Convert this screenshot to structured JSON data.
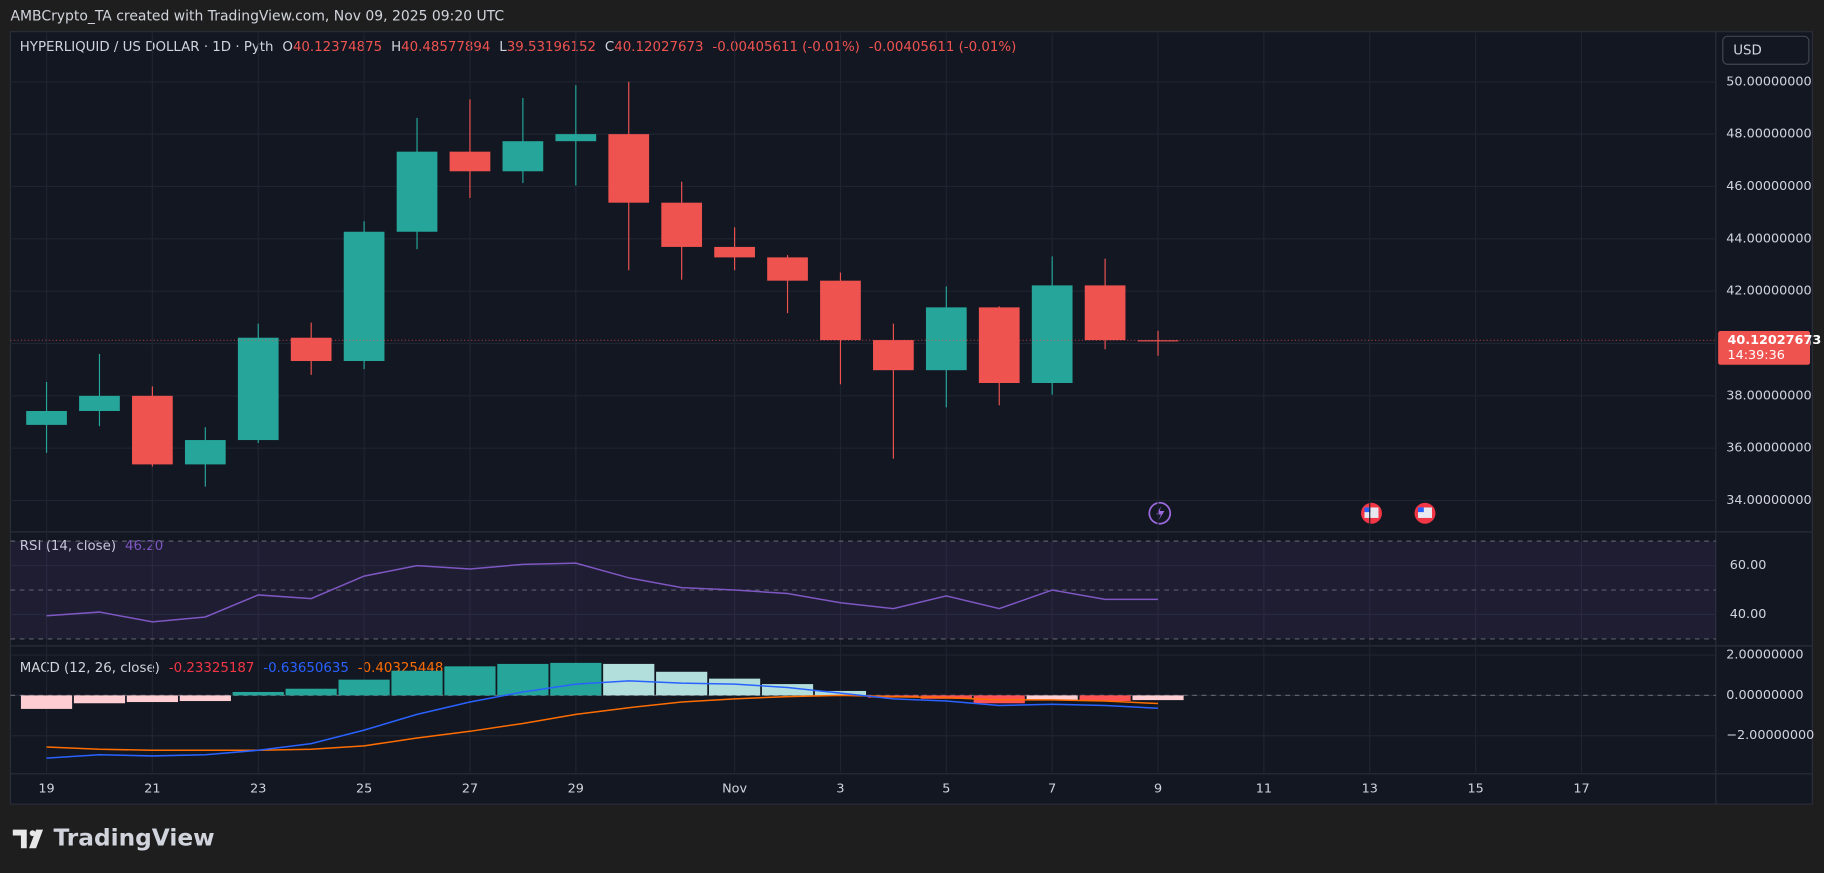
{
  "header": {
    "attribution": "AMBCrypto_TA created with TradingView.com, Nov 09, 2025 09:20 UTC",
    "currency": "USD",
    "logo": "TradingView"
  },
  "chart_data": [
    {
      "type": "candlestick",
      "title": "HYPERLIQUID / US DOLLAR · 1D · Pyth",
      "ohlc_letters": [
        "O",
        "H",
        "L",
        "C"
      ],
      "change": "-0.00405611 (-0.01%)",
      "categories": [
        "19",
        null,
        "21",
        null,
        "23",
        null,
        "25",
        null,
        "27",
        null,
        "29",
        null,
        null,
        "Nov",
        null,
        "3",
        null,
        "5",
        null,
        "7",
        null,
        "9",
        null,
        "11",
        null,
        "13",
        null,
        "15",
        null,
        "17"
      ],
      "open": [
        36.89,
        37.42,
        38.0,
        35.38,
        36.31,
        40.22,
        39.33,
        44.27,
        47.33,
        46.58,
        47.73,
        48.0,
        45.38,
        43.69,
        43.29,
        42.4,
        40.13,
        38.98,
        41.38,
        38.49,
        42.22,
        40.12374875,
        null,
        null,
        null,
        null,
        null,
        null,
        null,
        null
      ],
      "high": [
        38.53,
        39.6,
        38.36,
        36.8,
        40.76,
        40.8,
        44.67,
        48.62,
        49.33,
        49.38,
        49.87,
        50.0,
        46.18,
        44.44,
        43.38,
        42.71,
        40.76,
        42.18,
        41.42,
        43.33,
        43.24,
        40.48577894,
        null,
        null,
        null,
        null,
        null,
        null,
        null,
        null
      ],
      "low": [
        35.82,
        36.84,
        35.3,
        34.53,
        36.2,
        38.8,
        39.02,
        43.6,
        45.56,
        46.13,
        46.04,
        42.8,
        42.44,
        42.8,
        41.16,
        38.44,
        35.6,
        37.56,
        37.64,
        38.04,
        39.78,
        39.53196152,
        null,
        null,
        null,
        null,
        null,
        null,
        null,
        null
      ],
      "close": [
        37.42,
        38.0,
        35.38,
        36.31,
        40.22,
        39.33,
        44.27,
        47.33,
        46.58,
        47.73,
        48.0,
        45.38,
        43.69,
        43.29,
        42.4,
        40.13,
        38.98,
        41.38,
        38.49,
        42.22,
        40.13,
        40.12027673,
        null,
        null,
        null,
        null,
        null,
        null,
        null,
        null
      ],
      "up_color": "#26a69a",
      "down_color": "#ef5350",
      "ylim": [
        32.89,
        51.87
      ],
      "yticks": [
        {
          "value": 34,
          "label": "34.00000000"
        },
        {
          "value": 36,
          "label": "36.00000000"
        },
        {
          "value": 38,
          "label": "38.00000000"
        },
        {
          "value": 40,
          "label": "40.00000000"
        },
        {
          "value": 42,
          "label": "42.00000000"
        },
        {
          "value": 44,
          "label": "44.00000000"
        },
        {
          "value": 46,
          "label": "46.00000000"
        },
        {
          "value": 48,
          "label": "48.00000000"
        },
        {
          "value": 50,
          "label": "50.00000000"
        }
      ],
      "last_price_time": "14:39:36",
      "grid": true
    },
    {
      "type": "line",
      "title": "RSI (14, close)",
      "values": [
        39.5,
        41,
        37,
        39,
        48,
        46.5,
        55.7,
        60,
        58.6,
        60.5,
        61,
        55,
        51,
        50,
        48.6,
        44.8,
        42.4,
        47.6,
        42.4,
        50,
        46.2,
        46.2,
        null,
        null,
        null,
        null,
        null,
        null,
        null,
        null
      ],
      "value_label": "46.20",
      "color": "#7e57c2",
      "ylim": [
        28.6,
        71.4
      ],
      "yticks": [
        {
          "value": 40,
          "label": "40.00"
        },
        {
          "value": 60,
          "label": "60.00"
        }
      ],
      "band": [
        30,
        70
      ],
      "midline": 50
    },
    {
      "type": "macd",
      "title": "MACD (12, 26, close)",
      "histogram": {
        "values": [
          -0.67,
          -0.39,
          -0.33,
          -0.28,
          0.17,
          0.33,
          0.78,
          1.22,
          1.44,
          1.56,
          1.61,
          1.56,
          1.17,
          0.83,
          0.56,
          0.22,
          -0.11,
          -0.17,
          -0.39,
          -0.22,
          -0.28,
          -0.23325187,
          null,
          null,
          null,
          null,
          null,
          null,
          null,
          null
        ],
        "colors": {
          "up_rising": "#26a69a",
          "up_falling": "#b2dfdb",
          "down_rising": "#ffcdd2",
          "down_falling": "#ff5252"
        },
        "color": "#f23645"
      },
      "macd": {
        "values": [
          -3.11,
          -2.94,
          -3.0,
          -2.94,
          -2.72,
          -2.39,
          -1.72,
          -0.94,
          -0.33,
          0.17,
          0.56,
          0.72,
          0.61,
          0.56,
          0.39,
          0.11,
          -0.17,
          -0.28,
          -0.5,
          -0.44,
          -0.5,
          -0.63650635,
          null,
          null,
          null,
          null,
          null,
          null,
          null,
          null
        ],
        "color": "#2962ff"
      },
      "signal": {
        "values": [
          -2.56,
          -2.67,
          -2.72,
          -2.72,
          -2.72,
          -2.67,
          -2.5,
          -2.11,
          -1.78,
          -1.39,
          -0.94,
          -0.61,
          -0.33,
          -0.17,
          -0.06,
          0,
          -0.06,
          -0.11,
          -0.22,
          -0.22,
          -0.28,
          -0.40325448,
          null,
          null,
          null,
          null,
          null,
          null,
          null,
          null
        ],
        "color": "#ff6d00"
      },
      "ylim": [
        -3.83,
        2.28
      ],
      "yticks": [
        {
          "value": -2,
          "label": "−2.00000000"
        },
        {
          "value": 0,
          "label": "0.00000000"
        },
        {
          "value": 2,
          "label": "2.00000000"
        }
      ]
    }
  ]
}
